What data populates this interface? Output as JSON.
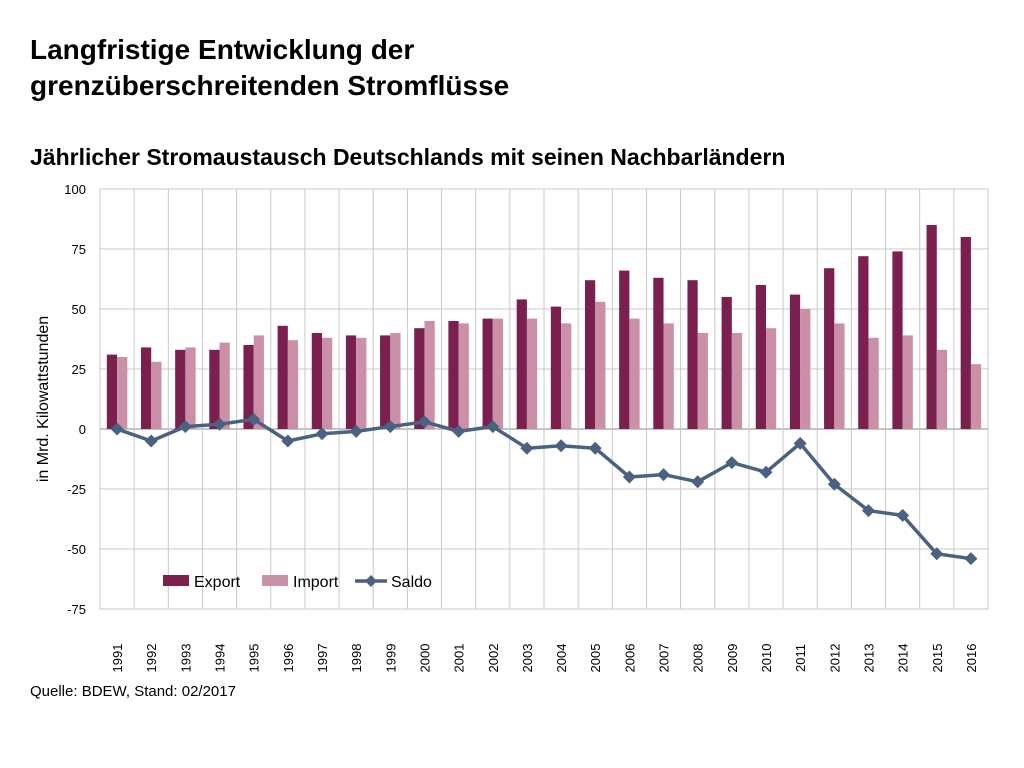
{
  "header": {
    "title_line1": "Langfristige Entwicklung der",
    "title_line2": "grenzüberschreitenden Stromflüsse",
    "subtitle": "Jährlicher Stromaustausch Deutschlands mit seinen Nachbarländern"
  },
  "footer": {
    "source": "Quelle: BDEW, Stand: 02/2017"
  },
  "chart_data": {
    "type": "bar",
    "ylabel": "in Mrd. Kilowattstunden",
    "ylim": [
      -75,
      100
    ],
    "yticks": [
      100,
      75,
      50,
      25,
      0,
      -25,
      -50,
      -75
    ],
    "grid": true,
    "legend_position": "bottom-left",
    "categories": [
      "1991",
      "1992",
      "1993",
      "1994",
      "1995",
      "1996",
      "1997",
      "1998",
      "1999",
      "2000",
      "2001",
      "2002",
      "2003",
      "2004",
      "2005",
      "2006",
      "2007",
      "2008",
      "2009",
      "2010",
      "2011",
      "2012",
      "2013",
      "2014",
      "2015",
      "2016"
    ],
    "series": [
      {
        "name": "Export",
        "kind": "bar",
        "color": "#7b1f4e",
        "values": [
          31,
          34,
          33,
          33,
          35,
          43,
          40,
          39,
          39,
          42,
          45,
          46,
          54,
          51,
          62,
          66,
          63,
          62,
          55,
          60,
          56,
          67,
          72,
          74,
          85,
          80
        ]
      },
      {
        "name": "Import",
        "kind": "bar",
        "color": "#c990a8",
        "values": [
          30,
          28,
          34,
          36,
          39,
          37,
          38,
          38,
          40,
          45,
          44,
          46,
          46,
          44,
          53,
          46,
          44,
          40,
          40,
          42,
          50,
          44,
          38,
          39,
          33,
          27
        ]
      },
      {
        "name": "Saldo",
        "kind": "line",
        "color": "#4a6280",
        "values": [
          0,
          -5,
          1,
          2,
          4,
          -5,
          -2,
          -1,
          1,
          3,
          -1,
          1,
          -8,
          -7,
          -8,
          -20,
          -19,
          -22,
          -14,
          -18,
          -6,
          -23,
          -34,
          -36,
          -52,
          -54
        ]
      }
    ]
  }
}
